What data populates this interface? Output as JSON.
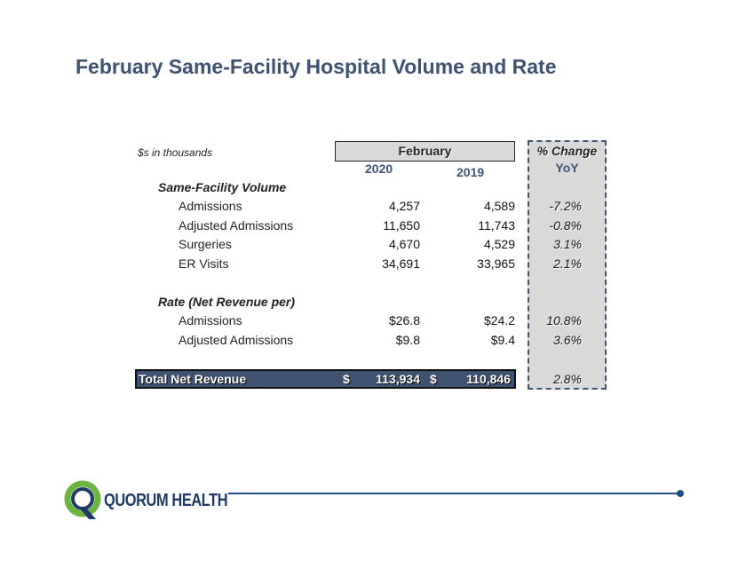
{
  "title": "February Same-Facility Hospital Volume and Rate",
  "table": {
    "units_note": "$s in thousands",
    "period_header": "February",
    "year_current": "2020",
    "year_prior": "2019",
    "change_header_line1": "% Change",
    "change_header_line2": "YoY",
    "volume_section": "Same-Facility Volume",
    "volume_rows": [
      {
        "label": "Admissions",
        "v2020": "4,257",
        "v2019": "4,589",
        "change": "-7.2%"
      },
      {
        "label": "Adjusted Admissions",
        "v2020": "11,650",
        "v2019": "11,743",
        "change": "-0.8%"
      },
      {
        "label": "Surgeries",
        "v2020": "4,670",
        "v2019": "4,529",
        "change": "3.1%"
      },
      {
        "label": "ER Visits",
        "v2020": "34,691",
        "v2019": "33,965",
        "change": "2.1%"
      }
    ],
    "rate_section": "Rate (Net Revenue per)",
    "rate_rows": [
      {
        "label": "Admissions",
        "v2020": "$26.8",
        "v2019": "$24.2",
        "change": "10.8%"
      },
      {
        "label": "Adjusted Admissions",
        "v2020": "$9.8",
        "v2019": "$9.4",
        "change": "3.6%"
      }
    ],
    "total": {
      "label": "Total Net Revenue",
      "currency_symbol": "$",
      "v2020": "113,934",
      "v2019": "110,846",
      "change": "2.8%"
    }
  },
  "logo": {
    "text": "QUORUM HEALTH",
    "colors": {
      "green": "#6db33f",
      "navy": "#1e3a66"
    }
  },
  "colors": {
    "title": "#3f5272",
    "total_bar": "#3f5272",
    "shaded": "#d9d9d9"
  }
}
